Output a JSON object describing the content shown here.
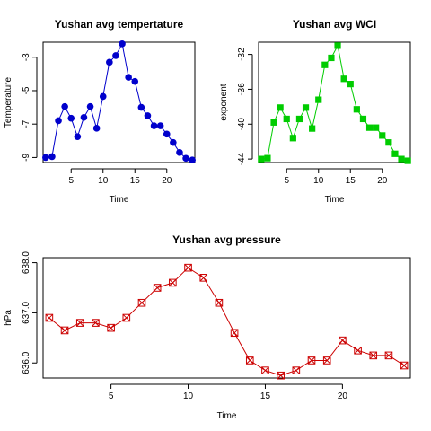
{
  "chart_data": [
    {
      "type": "line",
      "title": "Yushan avg tempertature",
      "xlabel": "Time",
      "ylabel": "Temperature",
      "xlim": [
        0.6,
        24.4
      ],
      "ylim": [
        -9.3,
        -2.1
      ],
      "xticks": [
        5,
        10,
        15,
        20
      ],
      "yticks": [
        -9,
        -7,
        -5,
        -3
      ],
      "marker": "circle",
      "color": "#0000CC",
      "x": [
        1,
        2,
        3,
        4,
        5,
        6,
        7,
        8,
        9,
        10,
        11,
        12,
        13,
        14,
        15,
        16,
        17,
        18,
        19,
        20,
        21,
        22,
        23,
        24
      ],
      "values": [
        -9.0,
        -8.95,
        -6.8,
        -5.95,
        -6.65,
        -7.75,
        -6.6,
        -5.95,
        -7.25,
        -5.35,
        -3.3,
        -2.9,
        -2.2,
        -4.2,
        -4.45,
        -6.0,
        -6.5,
        -7.1,
        -7.1,
        -7.6,
        -8.1,
        -8.7,
        -9.05,
        -9.15
      ]
    },
    {
      "type": "line",
      "title": "Yushan avg WCI",
      "xlabel": "Time",
      "ylabel": "exponent",
      "xlim": [
        0.6,
        24.4
      ],
      "ylim": [
        -44.4,
        -30.6
      ],
      "xticks": [
        5,
        10,
        15,
        20
      ],
      "yticks": [
        -44,
        -40,
        -36,
        -32
      ],
      "marker": "square",
      "color": "#00CC00",
      "x": [
        1,
        2,
        3,
        4,
        5,
        6,
        7,
        8,
        9,
        10,
        11,
        12,
        13,
        14,
        15,
        16,
        17,
        18,
        19,
        20,
        21,
        22,
        23,
        24
      ],
      "values": [
        -44.0,
        -43.9,
        -39.8,
        -38.1,
        -39.4,
        -41.6,
        -39.4,
        -38.1,
        -40.5,
        -37.2,
        -33.2,
        -32.4,
        -31.0,
        -34.8,
        -35.4,
        -38.3,
        -39.4,
        -40.4,
        -40.4,
        -41.3,
        -42.1,
        -43.4,
        -44.0,
        -44.2
      ]
    },
    {
      "type": "line",
      "title": "Yushan avg pressure",
      "xlabel": "Time",
      "ylabel": "hPa",
      "xlim": [
        0.6,
        24.4
      ],
      "ylim": [
        635.7,
        638.1
      ],
      "xticks": [
        5,
        10,
        15,
        20
      ],
      "yticks": [
        636.0,
        637.0,
        638.0
      ],
      "ytick_labels": [
        "636.0",
        "637.0",
        "638.0"
      ],
      "marker": "boxed-x",
      "color": "#CC0000",
      "x": [
        1,
        2,
        3,
        4,
        5,
        6,
        7,
        8,
        9,
        10,
        11,
        12,
        13,
        14,
        15,
        16,
        17,
        18,
        19,
        20,
        21,
        22,
        23,
        24
      ],
      "values": [
        636.9,
        636.65,
        636.8,
        636.8,
        636.7,
        636.9,
        637.2,
        637.5,
        637.6,
        637.9,
        637.7,
        637.2,
        636.6,
        636.05,
        635.85,
        635.75,
        635.85,
        636.05,
        636.05,
        636.45,
        636.25,
        636.15,
        636.15,
        635.95
      ]
    }
  ]
}
